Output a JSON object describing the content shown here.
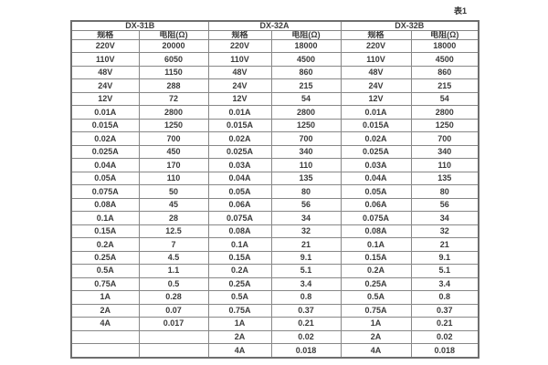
{
  "caption": "表1",
  "colors": {
    "background": "#ffffff",
    "text": "#3b3b3b",
    "border_inner": "#878787",
    "border_outer": "#6e6e6e"
  },
  "table": {
    "groups": [
      {
        "title": "DX-31B",
        "spec_header": "规格",
        "res_header": "电阻(Ω)"
      },
      {
        "title": "DX-32A",
        "spec_header": "规格",
        "res_header": "电阻(Ω)"
      },
      {
        "title": "DX-32B",
        "spec_header": "规格",
        "res_header": "电阻(Ω)"
      }
    ],
    "rows": [
      [
        "220V",
        "20000",
        "220V",
        "18000",
        "220V",
        "18000"
      ],
      [
        "110V",
        "6050",
        "110V",
        "4500",
        "110V",
        "4500"
      ],
      [
        "48V",
        "1150",
        "48V",
        "860",
        "48V",
        "860"
      ],
      [
        "24V",
        "288",
        "24V",
        "215",
        "24V",
        "215"
      ],
      [
        "12V",
        "72",
        "12V",
        "54",
        "12V",
        "54"
      ],
      [
        "0.01A",
        "2800",
        "0.01A",
        "2800",
        "0.01A",
        "2800"
      ],
      [
        "0.015A",
        "1250",
        "0.015A",
        "1250",
        "0.015A",
        "1250"
      ],
      [
        "0.02A",
        "700",
        "0.02A",
        "700",
        "0.02A",
        "700"
      ],
      [
        "0.025A",
        "450",
        "0.025A",
        "340",
        "0.025A",
        "340"
      ],
      [
        "0.04A",
        "170",
        "0.03A",
        "110",
        "0.03A",
        "110"
      ],
      [
        "0.05A",
        "110",
        "0.04A",
        "135",
        "0.04A",
        "135"
      ],
      [
        "0.075A",
        "50",
        "0.05A",
        "80",
        "0.05A",
        "80"
      ],
      [
        "0.08A",
        "45",
        "0.06A",
        "56",
        "0.06A",
        "56"
      ],
      [
        "0.1A",
        "28",
        "0.075A",
        "34",
        "0.075A",
        "34"
      ],
      [
        "0.15A",
        "12.5",
        "0.08A",
        "32",
        "0.08A",
        "32"
      ],
      [
        "0.2A",
        "7",
        "0.1A",
        "21",
        "0.1A",
        "21"
      ],
      [
        "0.25A",
        "4.5",
        "0.15A",
        "9.1",
        "0.15A",
        "9.1"
      ],
      [
        "0.5A",
        "1.1",
        "0.2A",
        "5.1",
        "0.2A",
        "5.1"
      ],
      [
        "0.75A",
        "0.5",
        "0.25A",
        "3.4",
        "0.25A",
        "3.4"
      ],
      [
        "1A",
        "0.28",
        "0.5A",
        "0.8",
        "0.5A",
        "0.8"
      ],
      [
        "2A",
        "0.07",
        "0.75A",
        "0.37",
        "0.75A",
        "0.37"
      ],
      [
        "4A",
        "0.017",
        "1A",
        "0.21",
        "1A",
        "0.21"
      ],
      [
        "",
        "",
        "2A",
        "0.02",
        "2A",
        "0.02"
      ],
      [
        "",
        "",
        "4A",
        "0.018",
        "4A",
        "0.018"
      ]
    ]
  }
}
